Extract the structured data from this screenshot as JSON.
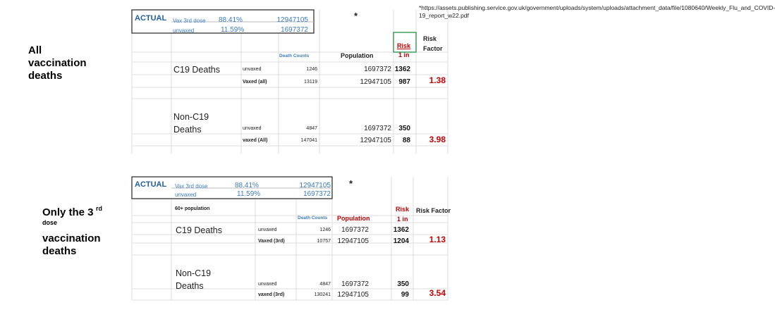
{
  "source_note": "*https://assets.publishing.service.gov.uk/government/uploads/system/uploads/attachment_data/file/1080640/Weekly_Flu_and_COVID-19_report_w22.pdf",
  "sections": [
    {
      "label": [
        "All",
        "vaccination",
        "deaths"
      ],
      "actual": {
        "title": "ACTUAL",
        "rows": [
          [
            "Vax 3rd dose",
            "88.41%",
            12947105
          ],
          [
            "unvaxed",
            "11.59%",
            1697372
          ]
        ]
      },
      "star": "*",
      "headers": {
        "death_counts": "Death Counts",
        "population": "Population",
        "risk": "Risk",
        "one_in": "1 in",
        "risk_factor": "Risk Factor"
      },
      "groups": [
        {
          "name": "C19 Deaths",
          "rows": [
            {
              "label": "unvaxed",
              "deaths": 1246,
              "population": 1697372,
              "risk": 1362
            },
            {
              "label": "Vaxed (all)",
              "deaths": 13119,
              "population": 12947105,
              "risk": 987,
              "factor": 1.38
            }
          ]
        },
        {
          "name": "Non-C19 Deaths",
          "rows": [
            {
              "label": "unvaxed",
              "deaths": 4847,
              "population": 1697372,
              "risk": 350
            },
            {
              "label": "vaxed (All)",
              "deaths": 147041,
              "population": 12947105,
              "risk": 88,
              "factor": 3.98
            }
          ]
        }
      ]
    },
    {
      "label": [
        "Only the 3",
        "rd",
        "dose",
        "vaccination",
        "deaths"
      ],
      "actual": {
        "title": "ACTUAL",
        "rows": [
          [
            "Vax 3rd dose",
            "88.41%",
            12947105
          ],
          [
            "unvaxed",
            "11.59%",
            1697372
          ]
        ]
      },
      "star": "*",
      "population_label": "60+ population",
      "headers": {
        "death_counts": "Death Counts",
        "population": "Population",
        "risk": "Risk",
        "one_in": "1 in",
        "risk_factor": "Risk Factor"
      },
      "groups": [
        {
          "name": "C19 Deaths",
          "rows": [
            {
              "label": "unvaxed",
              "deaths": 1246,
              "population": 1697372,
              "risk": 1362
            },
            {
              "label": "Vaxed (3rd)",
              "deaths": 10757,
              "population": 12947105,
              "risk": 1204,
              "factor": 1.13
            }
          ]
        },
        {
          "name": "Non-C19 Deaths",
          "rows": [
            {
              "label": "unvaxed",
              "deaths": 4847,
              "population": 1697372,
              "risk": 350
            },
            {
              "label": "vaxed (3rd)",
              "deaths": 130241,
              "population": 12947105,
              "risk": 99,
              "factor": 3.54
            }
          ]
        }
      ]
    }
  ]
}
